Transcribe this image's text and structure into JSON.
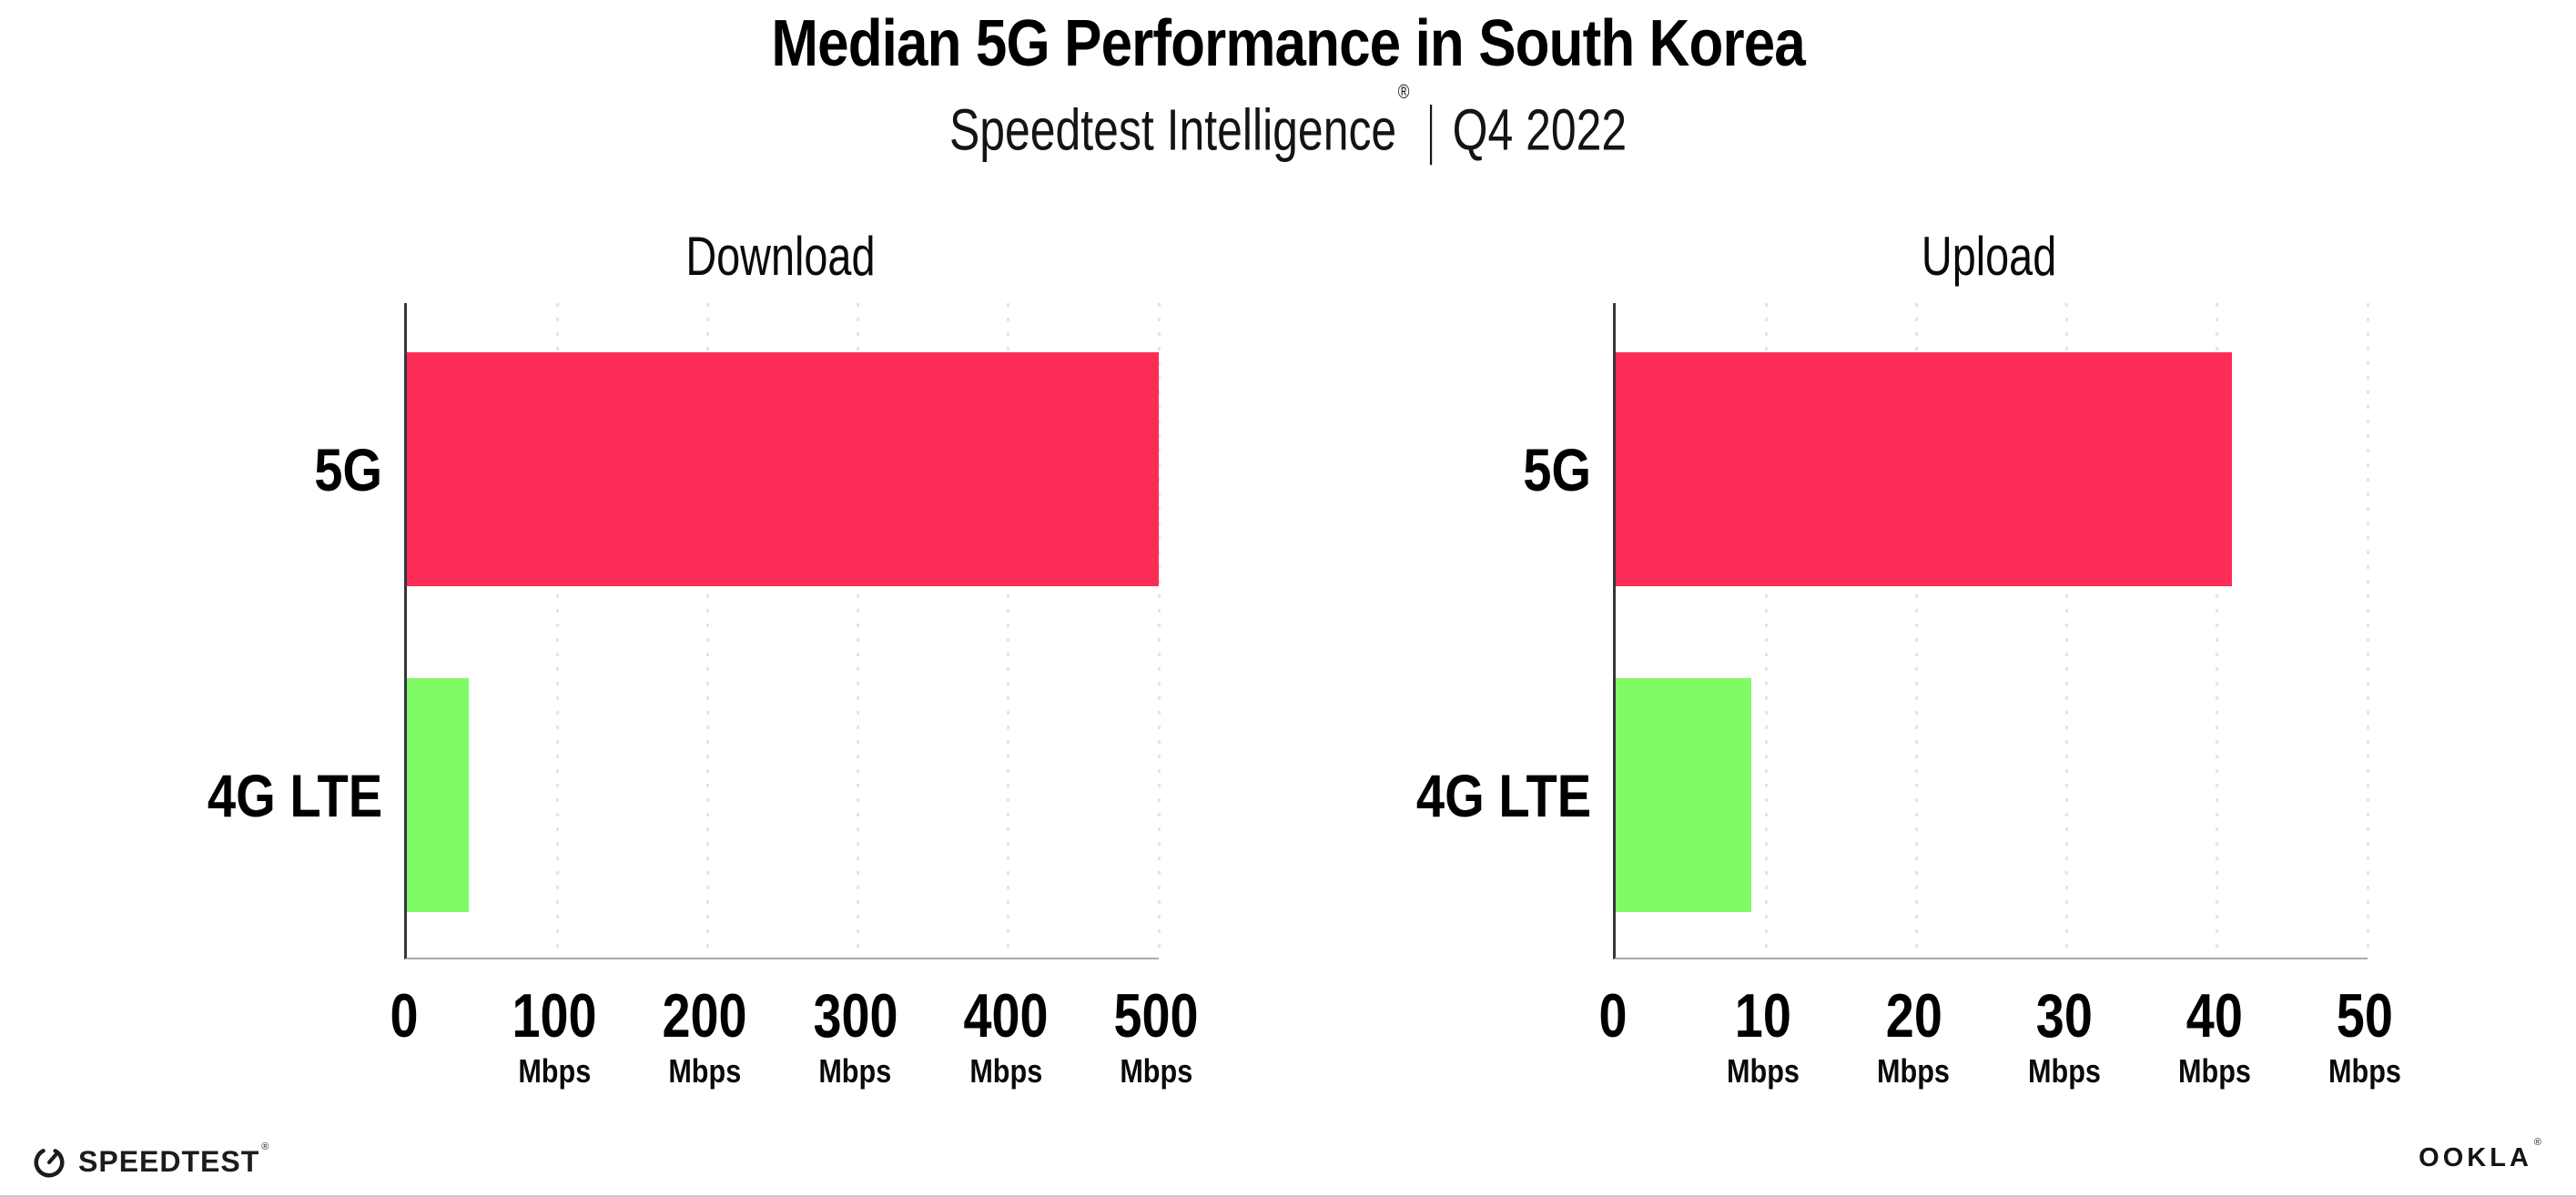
{
  "header": {
    "title": "Median 5G Performance in South Korea",
    "subtitle_brand": "Speedtest Intelligence",
    "subtitle_reg": "®",
    "subtitle_separator": "|",
    "subtitle_period": "Q4 2022"
  },
  "chart_data": [
    {
      "type": "bar",
      "orientation": "horizontal",
      "title": "Download",
      "categories": [
        "5G",
        "4G LTE"
      ],
      "values": [
        500,
        41
      ],
      "unit": "Mbps",
      "xlabel": "",
      "ylabel": "",
      "xlim": [
        0,
        500
      ],
      "xticks": [
        0,
        100,
        200,
        300,
        400,
        500
      ],
      "bar_colors": [
        "#FD2C56",
        "#80FB66"
      ],
      "grid": "vertical-dotted",
      "legend": "none"
    },
    {
      "type": "bar",
      "orientation": "horizontal",
      "title": "Upload",
      "categories": [
        "5G",
        "4G LTE"
      ],
      "values": [
        41,
        9
      ],
      "unit": "Mbps",
      "xlabel": "",
      "ylabel": "",
      "xlim": [
        0,
        50
      ],
      "xticks": [
        0,
        10,
        20,
        30,
        40,
        50
      ],
      "bar_colors": [
        "#FD2C56",
        "#80FB66"
      ],
      "grid": "vertical-dotted",
      "legend": "none"
    }
  ],
  "footer": {
    "speedtest_logo_text": "SPEEDTEST",
    "speedtest_reg": "®",
    "ookla_logo_text": "OOKLA",
    "ookla_reg": "®"
  },
  "colors": {
    "bar_5g": "#FD2C56",
    "bar_4g_lte": "#80FB66",
    "gridline": "#e3e3f0",
    "axis_left": "#35353f",
    "axis_bottom": "#a9a9ae",
    "background": "#ffffff"
  }
}
